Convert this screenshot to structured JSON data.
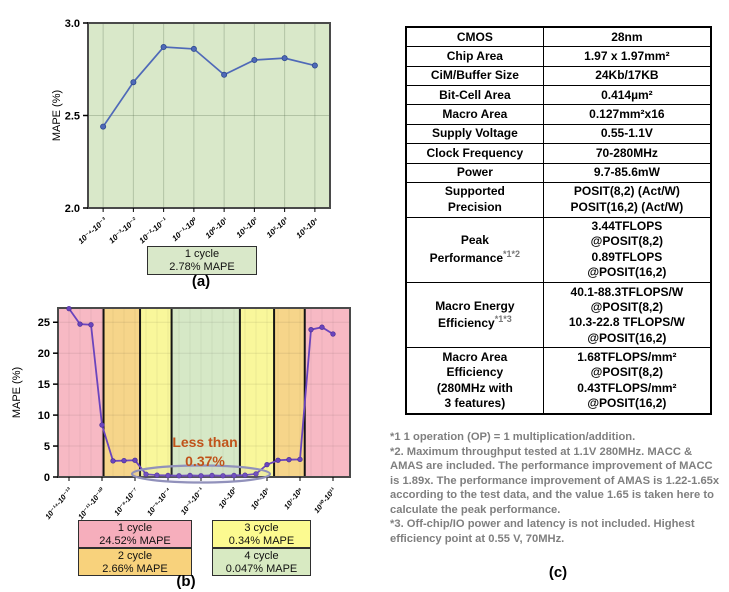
{
  "chart_data": [
    {
      "id": "a",
      "type": "line",
      "title": "",
      "xlabel": "",
      "ylabel": "MAPE (%)",
      "categories": [
        "10⁻⁴-10⁻³",
        "10⁻³-10⁻²",
        "10⁻²-10⁻¹",
        "10⁻¹-10⁰",
        "10⁰-10¹",
        "10¹-10²",
        "10²-10³",
        "10³-10⁴"
      ],
      "values": [
        2.44,
        2.68,
        2.87,
        2.86,
        2.72,
        2.8,
        2.81,
        2.77
      ],
      "ylim": [
        2.0,
        3.0
      ],
      "yticks": [
        2.0,
        2.5,
        3.0
      ],
      "grid": true,
      "bg_color": "#d9e8c9",
      "line_color": "#4f69b8",
      "marker_edge": "#2e4a8f",
      "legend": {
        "line1": "1 cycle",
        "line2": "2.78% MAPE",
        "color": "#d9e8c9"
      },
      "caption": "(a)"
    },
    {
      "id": "b",
      "type": "line",
      "title": "",
      "xlabel": "",
      "ylabel": "MAPE (%)",
      "categories": [
        "10⁻¹⁴-10⁻¹³",
        "10⁻¹¹-10⁻¹⁰",
        "10⁻⁸-10⁻⁷",
        "10⁻⁵-10⁻⁴",
        "10⁻²-10⁻¹",
        "10¹-10²",
        "10⁴-10⁵",
        "10⁷-10⁸",
        "10¹⁰-10¹¹"
      ],
      "tick_every": 3,
      "values": [
        27.2,
        24.7,
        24.6,
        8.4,
        2.6,
        2.65,
        2.7,
        0.45,
        0.3,
        0.25,
        0.2,
        0.25,
        0.2,
        0.25,
        0.2,
        0.25,
        0.3,
        0.5,
        2.0,
        2.7,
        2.8,
        2.85,
        23.8,
        24.2,
        23.1
      ],
      "ylim": [
        0,
        27.3
      ],
      "yticks": [
        0,
        5,
        10,
        15,
        20,
        25
      ],
      "grid": true,
      "line_color": "#6a44bd",
      "marker_edge": "#4a2f96",
      "bands": [
        {
          "from": 0.0,
          "to": 0.156,
          "color": "#f7b9c4",
          "cycle": "1 cycle"
        },
        {
          "from": 0.156,
          "to": 0.281,
          "color": "#f6d58a",
          "cycle": "2 cycle"
        },
        {
          "from": 0.281,
          "to": 0.389,
          "color": "#f9f79b",
          "cycle": "3 cycle"
        },
        {
          "from": 0.389,
          "to": 0.623,
          "color": "#d6e8c6",
          "cycle": "4 cycle"
        },
        {
          "from": 0.623,
          "to": 0.74,
          "color": "#f9f79b",
          "cycle": "3 cycle"
        },
        {
          "from": 0.74,
          "to": 0.845,
          "color": "#f6d58a",
          "cycle": "2 cycle"
        },
        {
          "from": 0.845,
          "to": 1.0,
          "color": "#f7b9c4",
          "cycle": "1 cycle"
        }
      ],
      "annotation": {
        "line1": "Less than",
        "line2": "0.37%",
        "color": "#c0531a"
      },
      "ellipse_color": "#9191bb",
      "caption": "(b)"
    }
  ],
  "legend_b": {
    "items": [
      {
        "line1": "1 cycle",
        "line2": "24.52% MAPE",
        "color": "#f6aebc"
      },
      {
        "line1": "3 cycle",
        "line2": "0.34% MAPE",
        "color": "#fcfa90"
      },
      {
        "line1": "2 cycle",
        "line2": "2.66% MAPE",
        "color": "#f8d27c"
      },
      {
        "line1": "4 cycle",
        "line2": "0.047% MAPE",
        "color": "#d8eac2"
      }
    ]
  },
  "table": {
    "rows": [
      {
        "label": "CMOS",
        "value": "28nm"
      },
      {
        "label": "Chip Area",
        "value": "1.97 x 1.97mm²"
      },
      {
        "label": "CiM/Buffer Size",
        "value": "24Kb/17KB"
      },
      {
        "label": "Bit-Cell Area",
        "value": "0.414µm²"
      },
      {
        "label": "Macro Area",
        "value": "0.127mm²x16"
      },
      {
        "label": "Supply Voltage",
        "value": "0.55-1.1V"
      },
      {
        "label": "Clock Frequency",
        "value": "70-280MHz"
      },
      {
        "label": "Power",
        "value": "9.7-85.6mW"
      },
      {
        "label": "Supported\nPrecision",
        "value": "POSIT(8,2) (Act/W)\nPOSIT(16,2) (Act/W)"
      },
      {
        "label": "Peak\nPerformance",
        "sup": "*1*2",
        "value": "3.44TFLOPS\n@POSIT(8,2)\n0.89TFLOPS\n@POSIT(16,2)"
      },
      {
        "label": "Macro Energy\nEfficiency",
        "sup": "*1*3",
        "value": "40.1-88.3TFLOPS/W\n@POSIT(8,2)\n10.3-22.8 TFLOPS/W\n@POSIT(16,2)"
      },
      {
        "label": "Macro Area\nEfficiency\n(280MHz with\n3 features)",
        "value": "1.68TFLOPS/mm²\n@POSIT(8,2)\n0.43TFLOPS/mm²\n@POSIT(16,2)"
      }
    ]
  },
  "footnotes": {
    "color": "#7f7f7f",
    "items": [
      "*1 1 operation (OP) = 1 multiplication/addition.",
      "*2. Maximum throughput tested at 1.1V 280MHz. MACC & AMAS are included. The performance improvement of MACC is 1.89x. The performance improvement of AMAS is 1.22-1.65x according to the test data, and the value 1.65 is taken here to calculate the peak performance.",
      "*3. Off-chip/IO power and latency is not included. Highest efficiency point  at 0.55 V, 70MHz."
    ],
    "caption": "(c)"
  }
}
